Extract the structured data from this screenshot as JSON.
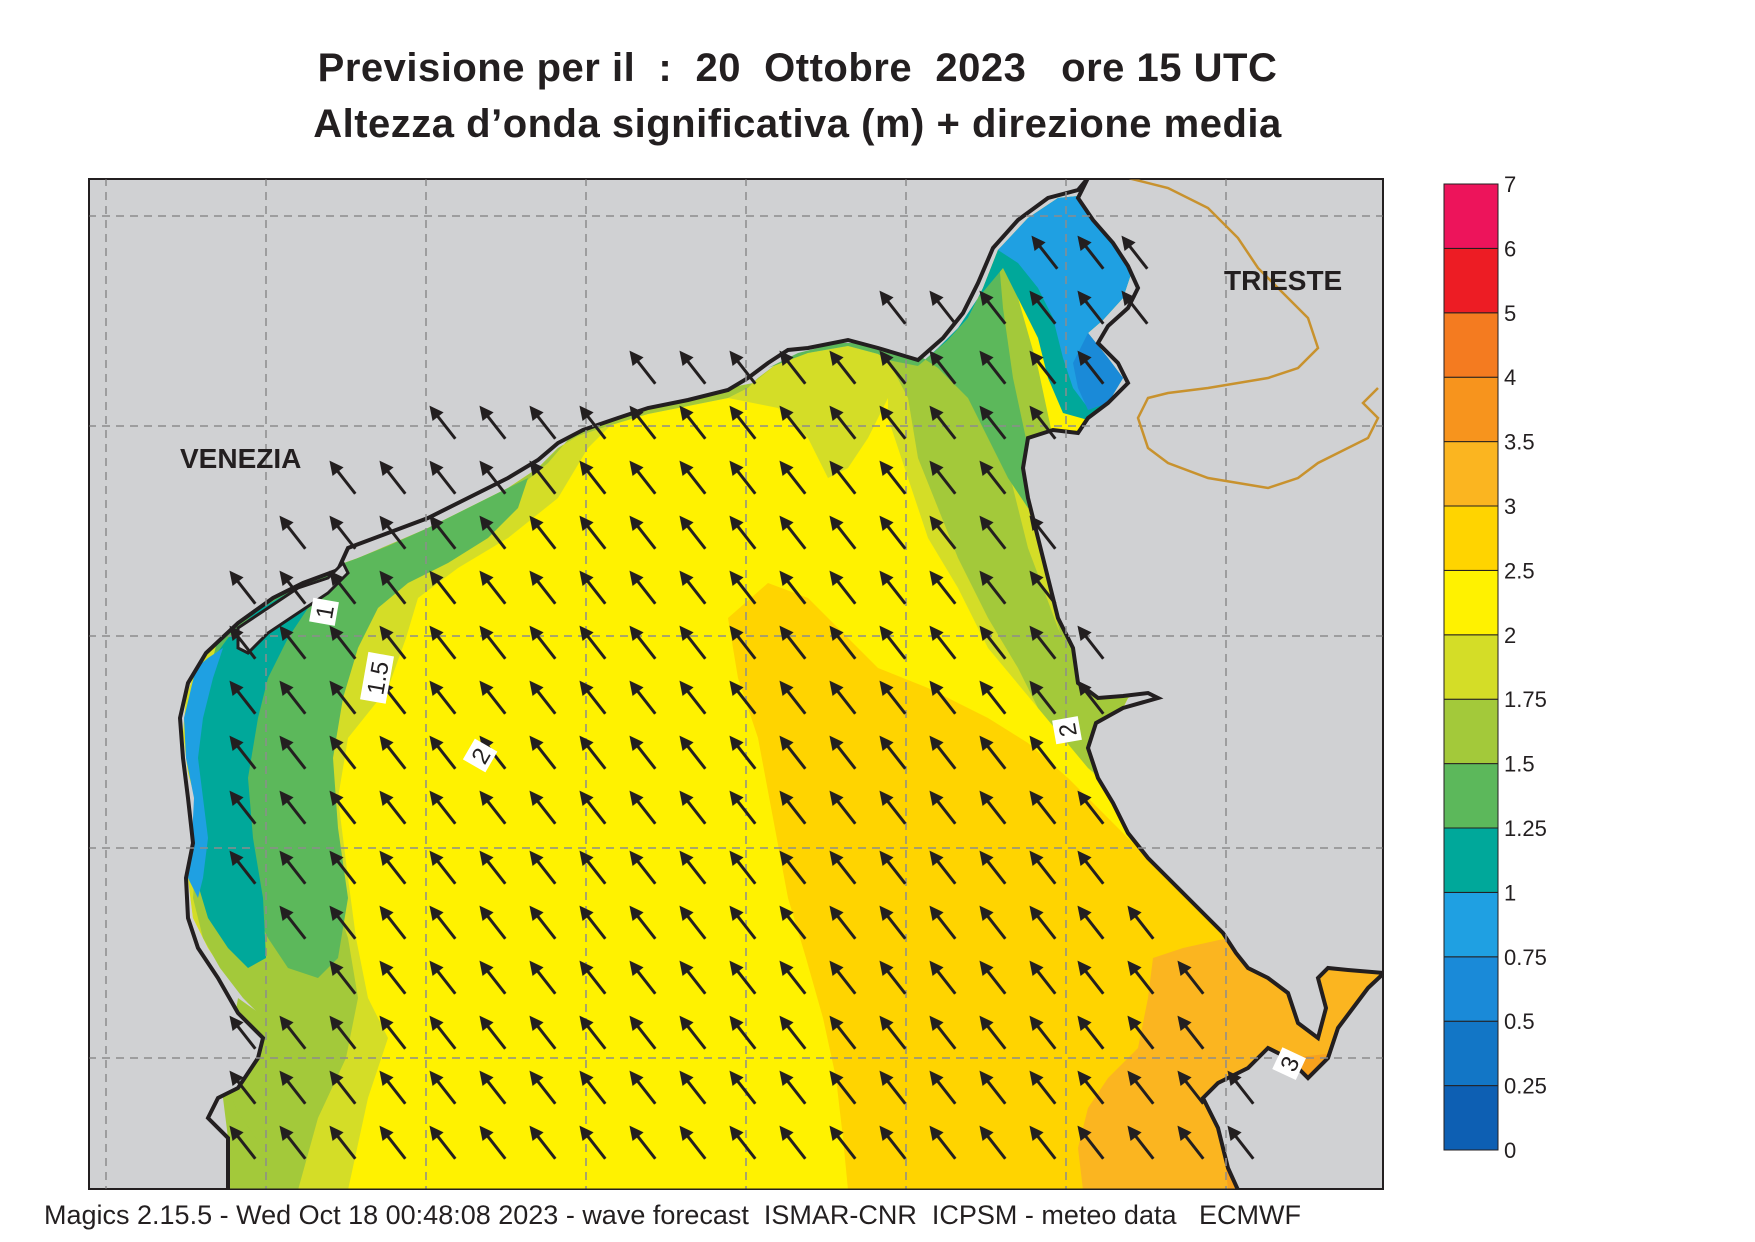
{
  "title": {
    "line1": "Previsione per il  :  20  Ottobre  2023   ore 15 UTC",
    "line2": "Altezza d’onda significativa (m) + direzione media"
  },
  "map": {
    "cities": [
      {
        "name": "VENEZIA"
      },
      {
        "name": "TRIESTE"
      }
    ],
    "contour_labels": [
      "1",
      "1.5",
      "2",
      "2",
      "3"
    ],
    "direction_arrow": "north-west-pointing-arrow",
    "colors": {
      "land": "#d0d1d3",
      "coast": "#231f20",
      "border": "#c8922e",
      "grid": "#8c8c8c"
    }
  },
  "legend": {
    "levels": [
      "0",
      "0.25",
      "0.5",
      "0.75",
      "1",
      "1.25",
      "1.5",
      "1.75",
      "2",
      "2.5",
      "3",
      "3.5",
      "4",
      "5",
      "6",
      "7"
    ],
    "colors": [
      "#0d5fb3",
      "#1276c6",
      "#1a8ad8",
      "#1fa0e2",
      "#00a89a",
      "#5cb85b",
      "#a3c93a",
      "#d4dd27",
      "#fff200",
      "#ffd400",
      "#fbb520",
      "#f7941d",
      "#f47b20",
      "#ed1c24",
      "#ed145b"
    ]
  },
  "footer": {
    "text": "Magics 2.15.5 - Wed Oct 18 00:48:08 2023 - wave forecast  ISMAR-CNR  ICPSM - meteo data   ECMWF"
  }
}
